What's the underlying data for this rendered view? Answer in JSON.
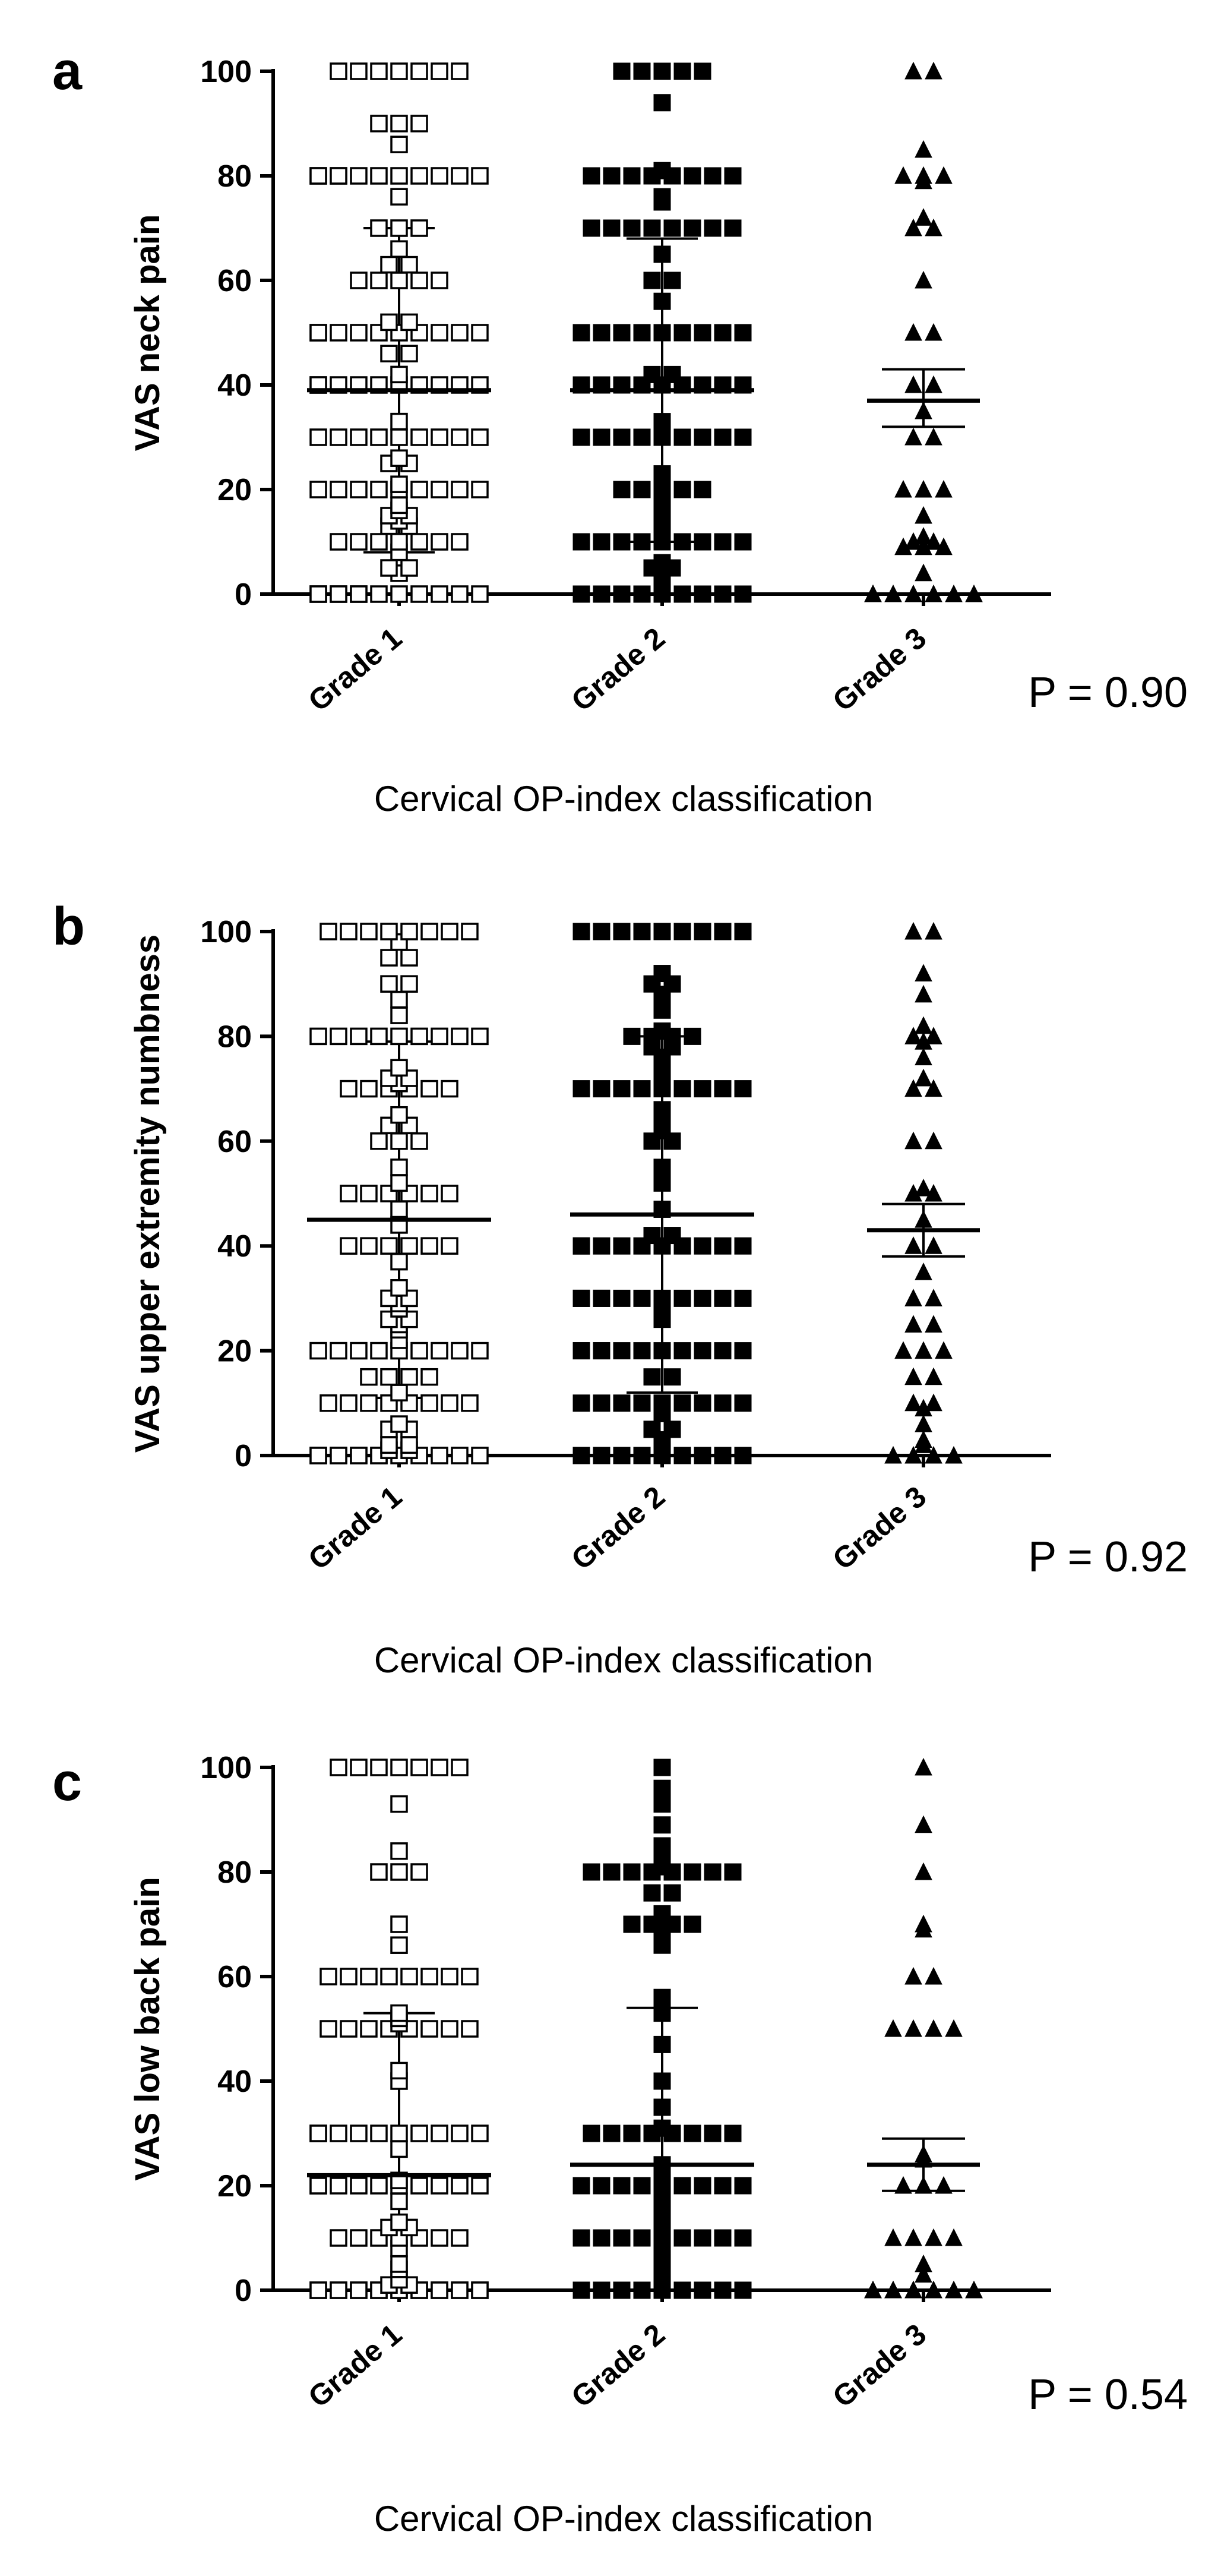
{
  "chart_data": [
    {
      "panel": "a",
      "type": "scatter",
      "chart_kind": "dot plot with mean and error bars",
      "ylabel": "VAS neck pain",
      "xlabel": "Cervical OP-index classification",
      "categories": [
        "Grade 1",
        "Grade 2",
        "Grade 3"
      ],
      "ylim": [
        0,
        100
      ],
      "yticks": [
        0,
        20,
        40,
        60,
        80,
        100
      ],
      "p_value": "P = 0.90",
      "series": [
        {
          "name": "Grade 1",
          "marker": "open-square",
          "mean": 39,
          "sd": 31,
          "values": [
            100,
            100,
            100,
            100,
            100,
            100,
            100,
            90,
            90,
            90,
            86,
            80,
            80,
            80,
            80,
            80,
            80,
            80,
            80,
            80,
            80,
            80,
            76,
            70,
            70,
            70,
            66,
            63,
            63,
            60,
            60,
            60,
            60,
            60,
            52,
            52,
            50,
            50,
            50,
            50,
            50,
            50,
            50,
            50,
            50,
            50,
            46,
            46,
            42,
            40,
            40,
            40,
            40,
            40,
            40,
            40,
            40,
            40,
            40,
            33,
            30,
            30,
            30,
            30,
            30,
            30,
            30,
            30,
            30,
            26,
            25,
            25,
            21,
            20,
            20,
            20,
            20,
            20,
            20,
            20,
            20,
            20,
            17,
            16,
            15,
            15,
            14,
            13,
            13,
            10,
            10,
            10,
            10,
            10,
            10,
            10,
            8,
            5,
            5,
            4,
            0,
            0,
            0,
            0,
            0,
            0,
            0,
            0,
            0,
            0,
            0,
            0
          ]
        },
        {
          "name": "Grade 2",
          "marker": "filled-square",
          "mean": 39,
          "sd": 29,
          "values": [
            100,
            100,
            100,
            100,
            100,
            94,
            81,
            80,
            80,
            80,
            80,
            80,
            80,
            80,
            80,
            76,
            75,
            70,
            70,
            70,
            70,
            70,
            70,
            70,
            70,
            65,
            60,
            60,
            56,
            50,
            50,
            50,
            50,
            50,
            50,
            50,
            50,
            50,
            50,
            50,
            50,
            42,
            42,
            40,
            40,
            40,
            40,
            40,
            40,
            40,
            40,
            40,
            40,
            40,
            40,
            33,
            32,
            30,
            30,
            30,
            30,
            30,
            30,
            30,
            30,
            30,
            30,
            23,
            22,
            20,
            20,
            20,
            20,
            20,
            17,
            15,
            13,
            10,
            10,
            10,
            10,
            10,
            10,
            10,
            10,
            10,
            6,
            5,
            5,
            3,
            0,
            0,
            0,
            0,
            0,
            0,
            0,
            0,
            0,
            0,
            0,
            0,
            0,
            0,
            0,
            0,
            0,
            0
          ]
        },
        {
          "name": "Grade 3",
          "marker": "filled-triangle",
          "mean": 37,
          "sem_low": 32,
          "sem_high": 43,
          "values": [
            100,
            100,
            85,
            80,
            80,
            80,
            79,
            72,
            70,
            70,
            60,
            50,
            50,
            40,
            40,
            35,
            30,
            30,
            20,
            20,
            20,
            15,
            11,
            10,
            10,
            9,
            9,
            9,
            4,
            0,
            0,
            0,
            0,
            0,
            0,
            0
          ]
        }
      ]
    },
    {
      "panel": "b",
      "type": "scatter",
      "chart_kind": "dot plot with mean and error bars",
      "ylabel": "VAS upper extremity numbness",
      "xlabel": "Cervical OP-index classification",
      "categories": [
        "Grade 1",
        "Grade 2",
        "Grade 3"
      ],
      "ylim": [
        0,
        100
      ],
      "yticks": [
        0,
        20,
        40,
        60,
        80,
        100
      ],
      "p_value": "P = 0.92",
      "series": [
        {
          "name": "Grade 1",
          "marker": "open-square",
          "mean": 45,
          "sd": 34,
          "values": [
            100,
            100,
            100,
            100,
            100,
            100,
            100,
            100,
            98,
            95,
            95,
            90,
            90,
            87,
            84,
            80,
            80,
            80,
            80,
            80,
            80,
            80,
            80,
            80,
            74,
            72,
            72,
            71,
            70,
            70,
            70,
            70,
            70,
            70,
            65,
            63,
            63,
            60,
            60,
            60,
            55,
            52,
            50,
            50,
            50,
            50,
            50,
            50,
            47,
            44,
            40,
            40,
            40,
            40,
            40,
            40,
            37,
            32,
            30,
            30,
            29,
            28,
            26,
            26,
            25,
            24,
            22,
            20,
            20,
            20,
            20,
            20,
            20,
            20,
            20,
            20,
            15,
            15,
            15,
            15,
            12,
            10,
            10,
            10,
            10,
            10,
            10,
            10,
            10,
            6,
            5,
            5,
            2,
            2,
            1,
            1,
            0,
            0,
            0,
            0,
            0,
            0,
            0,
            0,
            0,
            0,
            0,
            0,
            0
          ]
        },
        {
          "name": "Grade 2",
          "marker": "filled-square",
          "mean": 46,
          "sd": 34,
          "values": [
            100,
            100,
            100,
            100,
            100,
            100,
            100,
            100,
            100,
            100,
            100,
            100,
            100,
            100,
            92,
            90,
            90,
            88,
            85,
            81,
            80,
            80,
            80,
            80,
            78,
            78,
            76,
            74,
            72,
            71,
            70,
            70,
            70,
            70,
            70,
            70,
            70,
            70,
            70,
            66,
            64,
            62,
            60,
            60,
            55,
            52,
            47,
            42,
            42,
            40,
            40,
            40,
            40,
            40,
            40,
            40,
            40,
            40,
            40,
            30,
            30,
            30,
            30,
            30,
            30,
            30,
            30,
            30,
            30,
            30,
            28,
            26,
            20,
            20,
            20,
            20,
            20,
            20,
            20,
            20,
            20,
            20,
            20,
            15,
            15,
            10,
            10,
            10,
            10,
            10,
            10,
            10,
            10,
            10,
            8,
            5,
            5,
            3,
            2,
            0,
            0,
            0,
            0,
            0,
            0,
            0,
            0,
            0,
            0,
            0,
            0,
            0,
            0,
            0
          ]
        },
        {
          "name": "Grade 3",
          "marker": "filled-triangle",
          "mean": 43,
          "sem_low": 38,
          "sem_high": 48,
          "values": [
            100,
            100,
            92,
            88,
            82,
            80,
            80,
            79,
            76,
            72,
            70,
            70,
            60,
            60,
            51,
            50,
            50,
            45,
            40,
            40,
            35,
            30,
            30,
            25,
            25,
            20,
            20,
            20,
            15,
            15,
            10,
            10,
            9,
            6,
            3,
            2,
            0,
            0,
            0,
            0
          ]
        }
      ]
    },
    {
      "panel": "c",
      "type": "scatter",
      "chart_kind": "dot plot with mean and error bars",
      "ylabel": "VAS low back pain",
      "xlabel": "Cervical OP-index classification",
      "categories": [
        "Grade 1",
        "Grade 2",
        "Grade 3"
      ],
      "ylim": [
        0,
        100
      ],
      "yticks": [
        0,
        20,
        40,
        60,
        80,
        100
      ],
      "p_value": "P = 0.54",
      "series": [
        {
          "name": "Grade 1",
          "marker": "open-square",
          "mean": 22,
          "sd": 31,
          "values": [
            100,
            100,
            100,
            100,
            100,
            100,
            100,
            93,
            84,
            80,
            80,
            80,
            70,
            66,
            60,
            60,
            60,
            60,
            60,
            60,
            60,
            60,
            53,
            52,
            51,
            50,
            50,
            50,
            50,
            50,
            50,
            50,
            50,
            42,
            40,
            30,
            30,
            30,
            30,
            30,
            30,
            30,
            30,
            30,
            30,
            27,
            21,
            20,
            20,
            20,
            20,
            20,
            20,
            20,
            20,
            20,
            20,
            17,
            13,
            12,
            12,
            10,
            10,
            10,
            10,
            10,
            10,
            10,
            8,
            5,
            4,
            2,
            1,
            1,
            0,
            0,
            0,
            0,
            0,
            0,
            0,
            0,
            0,
            0,
            0,
            0,
            0,
            0,
            0,
            0,
            0,
            0
          ]
        },
        {
          "name": "Grade 2",
          "marker": "filled-square",
          "mean": 24,
          "sd": 30,
          "values": [
            100,
            96,
            93,
            89,
            85,
            82,
            81,
            80,
            80,
            80,
            80,
            80,
            80,
            80,
            80,
            76,
            76,
            72,
            70,
            70,
            70,
            70,
            69,
            66,
            56,
            53,
            47,
            40,
            35,
            31,
            30,
            30,
            30,
            30,
            30,
            30,
            30,
            30,
            24,
            23,
            22,
            20,
            20,
            20,
            20,
            20,
            20,
            20,
            20,
            20,
            20,
            18,
            16,
            14,
            13,
            10,
            10,
            10,
            10,
            10,
            10,
            10,
            10,
            10,
            10,
            8,
            7,
            5,
            3,
            2,
            1,
            0,
            0,
            0,
            0,
            0,
            0,
            0,
            0,
            0,
            0,
            0,
            0,
            0,
            0,
            0,
            0,
            0,
            0,
            0,
            0,
            0,
            0,
            0,
            0
          ]
        },
        {
          "name": "Grade 3",
          "marker": "filled-triangle",
          "mean": 24,
          "sem_low": 19,
          "sem_high": 29,
          "values": [
            100,
            89,
            80,
            70,
            69,
            60,
            60,
            50,
            50,
            50,
            50,
            26,
            25,
            20,
            20,
            20,
            10,
            10,
            10,
            10,
            5,
            3,
            0,
            0,
            0,
            0,
            0,
            0,
            0,
            0,
            0,
            0,
            0,
            0,
            0,
            0
          ]
        }
      ]
    }
  ]
}
